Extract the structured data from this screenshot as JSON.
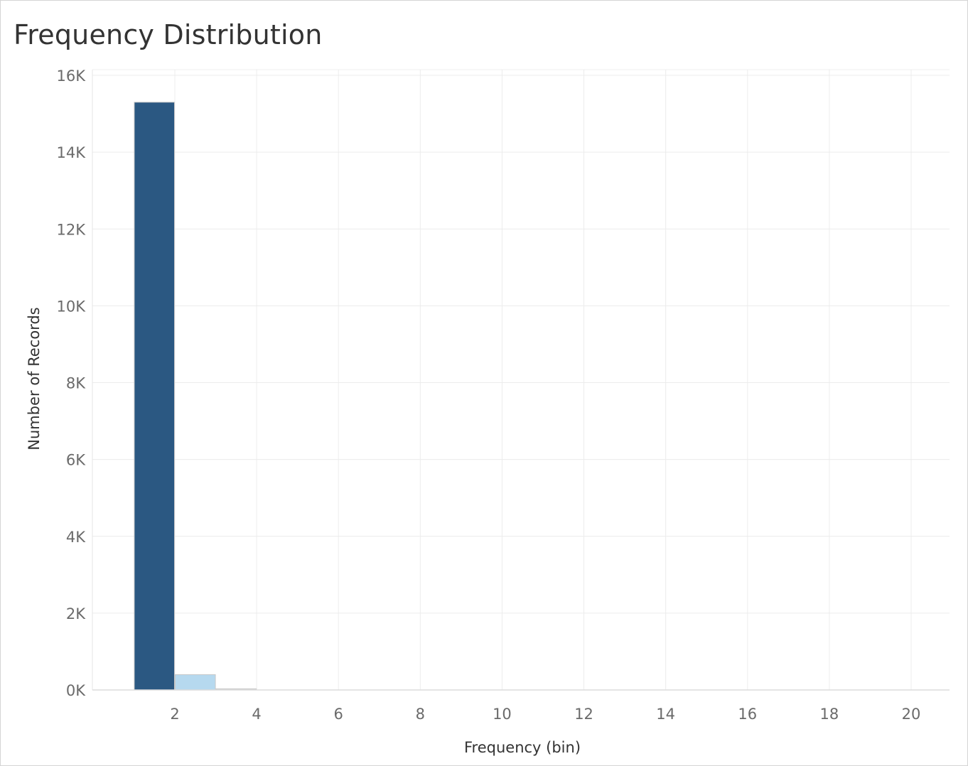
{
  "title": "Frequency Distribution",
  "chart_data": {
    "type": "bar",
    "title": "Frequency Distribution",
    "xlabel": "Frequency (bin)",
    "ylabel": "Number of Records",
    "xlim": [
      0,
      21
    ],
    "ylim": [
      0,
      16000
    ],
    "x_ticks": [
      2,
      4,
      6,
      8,
      10,
      12,
      14,
      16,
      18,
      20
    ],
    "y_ticks": [
      {
        "value": 0,
        "label": "0K"
      },
      {
        "value": 2000,
        "label": "2K"
      },
      {
        "value": 4000,
        "label": "4K"
      },
      {
        "value": 6000,
        "label": "6K"
      },
      {
        "value": 8000,
        "label": "8K"
      },
      {
        "value": 10000,
        "label": "10K"
      },
      {
        "value": 12000,
        "label": "12K"
      },
      {
        "value": 14000,
        "label": "14K"
      },
      {
        "value": 16000,
        "label": "16K"
      }
    ],
    "bins": [
      {
        "x_start": 1,
        "x_end": 2,
        "value": 15300,
        "color": "#2b5882"
      },
      {
        "x_start": 2,
        "x_end": 3,
        "value": 400,
        "color": "#b6d9ef"
      },
      {
        "x_start": 3,
        "x_end": 4,
        "value": 30,
        "color": "#d6d6d6"
      }
    ],
    "grid": true,
    "legend": "none"
  }
}
